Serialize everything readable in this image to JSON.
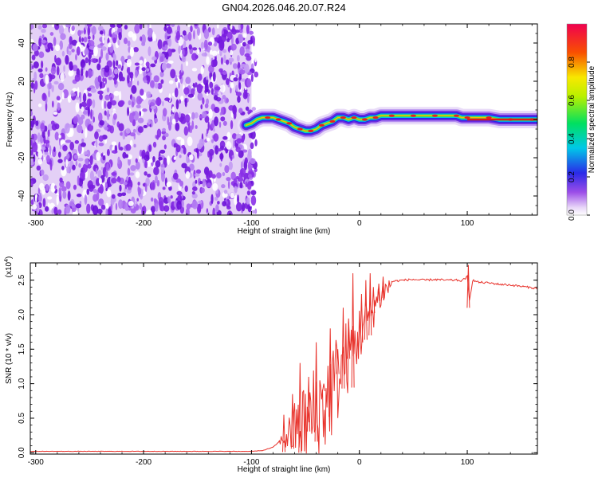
{
  "title": "GN04.2026.046.20.07.R24",
  "chart_data": [
    {
      "type": "heatmap",
      "name": "spectrogram",
      "xlabel": "Height of straight line (km)",
      "ylabel": "Frequency (Hz)",
      "xlim": [
        -305,
        165
      ],
      "ylim": [
        -50,
        50
      ],
      "xticks": [
        -300,
        -200,
        -100,
        0,
        100
      ],
      "yticks": [
        -40,
        -20,
        0,
        20,
        40
      ],
      "noise_region_x": [
        -305,
        -100
      ],
      "signal_track": {
        "x": [
          -105,
          -100,
          -95,
          -90,
          -85,
          -80,
          -75,
          -70,
          -65,
          -60,
          -55,
          -50,
          -45,
          -40,
          -35,
          -30,
          -25,
          -20,
          -15,
          -10,
          -5,
          0,
          5,
          10,
          15,
          20,
          30,
          40,
          50,
          60,
          70,
          80,
          90,
          95,
          100,
          110,
          120,
          130,
          140,
          150,
          160,
          165
        ],
        "y": [
          -3,
          -2,
          0,
          1,
          1,
          1,
          0,
          -1,
          -2,
          -4,
          -5,
          -6,
          -6,
          -5,
          -3,
          -2,
          -1,
          1,
          1,
          0,
          1,
          0,
          0,
          1,
          1,
          2,
          2,
          2,
          2,
          2,
          2,
          2,
          2,
          1,
          1,
          1,
          1,
          0,
          0,
          0,
          0,
          0
        ]
      },
      "colorbar": {
        "label": "Normalized spectral amplitude",
        "range": [
          0.0,
          1.0
        ],
        "ticks": [
          "0.0",
          "0.2",
          "0.4",
          "0.6",
          "0.8"
        ],
        "tick_values": [
          0.0,
          0.2,
          0.4,
          0.6,
          0.8
        ]
      }
    },
    {
      "type": "line",
      "name": "snr",
      "xlabel": "Height of straight line (km)",
      "ylabel": "SNR (10 * v/v)",
      "multiplier_label": "(x10",
      "multiplier_exp": "4",
      "multiplier_close": ")",
      "xlim": [
        -305,
        165
      ],
      "ylim": [
        -0.02,
        2.75
      ],
      "xticks": [
        -300,
        -200,
        -100,
        0,
        100
      ],
      "yticks": [
        0.0,
        0.5,
        1.0,
        1.5,
        2.0,
        2.5
      ],
      "ytick_labels": [
        "0.0",
        "0.5",
        "1.0",
        "1.5",
        "2.0",
        "2.5"
      ],
      "line_color": "#e8322b",
      "series": {
        "x": [
          -305,
          -250,
          -200,
          -150,
          -100,
          -90,
          -80,
          -75,
          -70,
          -65,
          -60,
          -55,
          -50,
          -45,
          -40,
          -35,
          -30,
          -25,
          -20,
          -15,
          -10,
          -5,
          0,
          5,
          10,
          15,
          20,
          25,
          30,
          40,
          50,
          60,
          70,
          80,
          90,
          95,
          100,
          102,
          105,
          110,
          120,
          130,
          140,
          150,
          160,
          165
        ],
        "y": [
          0.02,
          0.02,
          0.02,
          0.02,
          0.02,
          0.03,
          0.08,
          0.15,
          0.25,
          0.35,
          0.45,
          0.55,
          0.6,
          0.7,
          0.8,
          0.9,
          1.0,
          1.15,
          1.3,
          1.45,
          1.6,
          1.7,
          1.85,
          2.0,
          2.1,
          2.25,
          2.35,
          2.42,
          2.48,
          2.5,
          2.51,
          2.5,
          2.51,
          2.5,
          2.5,
          2.49,
          2.55,
          2.2,
          2.5,
          2.47,
          2.46,
          2.44,
          2.43,
          2.41,
          2.39,
          2.38
        ]
      },
      "spikes": {
        "x": [
          -70,
          -62,
          -55,
          -47,
          -40,
          -33,
          -27,
          -20,
          -15,
          -10,
          -6,
          2,
          6,
          10,
          13,
          18,
          22,
          101
        ],
        "y": [
          0.55,
          0.85,
          1.3,
          1.1,
          1.6,
          1.0,
          1.8,
          1.5,
          2.1,
          1.9,
          2.6,
          2.3,
          2.5,
          2.6,
          2.4,
          2.45,
          2.55,
          2.72
        ]
      }
    }
  ]
}
